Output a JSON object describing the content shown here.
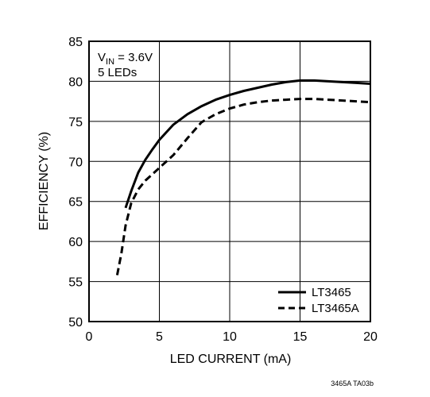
{
  "chart_data": {
    "type": "line",
    "xlabel": "LED CURRENT (mA)",
    "ylabel": "EFFICIENCY (%)",
    "xlim": [
      0,
      20
    ],
    "ylim": [
      50,
      85
    ],
    "x_ticks": [
      "0",
      "5",
      "10",
      "15",
      "20"
    ],
    "y_ticks": [
      "50",
      "55",
      "60",
      "65",
      "70",
      "75",
      "80",
      "85"
    ],
    "grid": true,
    "legend_placement": "bottom-right",
    "annotation": {
      "line1_main": "V",
      "line1_sub": "IN",
      "line1_rest": " = 3.6V",
      "line2": "5 LEDs"
    },
    "footnote": "3465A TA03b",
    "series": [
      {
        "name": "LT3465",
        "style": "solid",
        "x": [
          2.6,
          3,
          3.5,
          4,
          4.5,
          5,
          6,
          7,
          8,
          9,
          10,
          11,
          12,
          13,
          14,
          15,
          16,
          17,
          18,
          19,
          20
        ],
        "y": [
          64.2,
          66.3,
          68.6,
          70.2,
          71.5,
          72.7,
          74.6,
          75.9,
          76.9,
          77.7,
          78.3,
          78.8,
          79.2,
          79.6,
          79.9,
          80.1,
          80.1,
          80.0,
          79.9,
          79.8,
          79.7
        ]
      },
      {
        "name": "LT3465A",
        "style": "dashed",
        "x": [
          2,
          2.3,
          2.6,
          3,
          3.5,
          4,
          5,
          6,
          7,
          8,
          9,
          10,
          11,
          12,
          13,
          14,
          15,
          16,
          17,
          18,
          19,
          20
        ],
        "y": [
          55.8,
          58.5,
          62.0,
          64.8,
          66.5,
          67.6,
          69.2,
          70.8,
          72.9,
          74.9,
          75.9,
          76.6,
          77.1,
          77.4,
          77.6,
          77.7,
          77.8,
          77.8,
          77.7,
          77.6,
          77.5,
          77.4
        ]
      }
    ]
  }
}
